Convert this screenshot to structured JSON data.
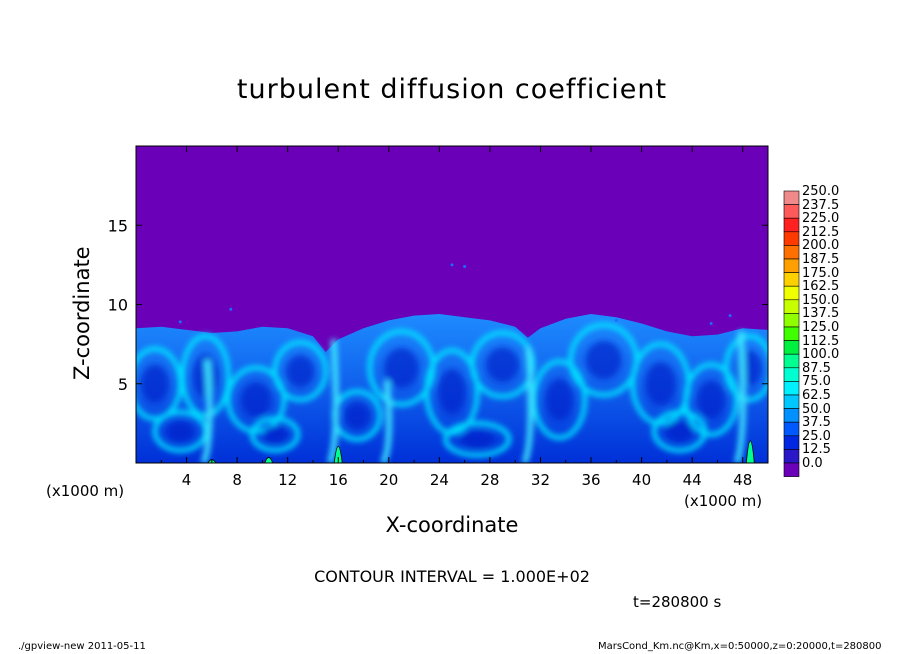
{
  "chart_data": {
    "type": "heatmap",
    "title": "turbulent diffusion coefficient",
    "xlabel": "X-coordinate",
    "ylabel": "Z-coordinate",
    "x_unit": "(x1000 m)",
    "xlim": [
      0,
      50
    ],
    "ylim": [
      0,
      20
    ],
    "x_ticks": [
      "4",
      "8",
      "12",
      "16",
      "20",
      "24",
      "28",
      "32",
      "36",
      "40",
      "44",
      "48"
    ],
    "y_ticks": [
      "5",
      "10",
      "15"
    ],
    "x_tick_values": [
      4,
      8,
      12,
      16,
      20,
      24,
      28,
      32,
      36,
      40,
      44,
      48
    ],
    "y_tick_values": [
      5,
      10,
      15
    ],
    "colorbar": {
      "levels": [
        "250.0",
        "237.5",
        "225.0",
        "212.5",
        "200.0",
        "187.5",
        "175.0",
        "162.5",
        "150.0",
        "137.5",
        "125.0",
        "112.5",
        "100.0",
        "87.5",
        "75.0",
        "62.5",
        "50.0",
        "37.5",
        "25.0",
        "12.5",
        "0.0"
      ],
      "colors": [
        "#f08a8a",
        "#ff5a5a",
        "#ff2020",
        "#ff3a00",
        "#ff7000",
        "#ffa000",
        "#ffd000",
        "#f0ff00",
        "#c8ff00",
        "#90ff00",
        "#40ff00",
        "#00f040",
        "#00ff90",
        "#00ffd0",
        "#00f0ff",
        "#00c8ff",
        "#0090ff",
        "#0058ff",
        "#0028e0",
        "#2a18c8",
        "#6a00b8"
      ]
    },
    "boundary_layer_top": {
      "x": [
        0,
        2,
        4,
        6,
        8,
        10,
        12,
        14,
        15,
        16,
        18,
        20,
        22,
        24,
        26,
        28,
        30,
        31,
        32,
        34,
        36,
        38,
        40,
        42,
        44,
        46,
        48,
        50
      ],
      "z": [
        8.5,
        8.6,
        8.4,
        8.2,
        8.3,
        8.6,
        8.5,
        8.0,
        7.0,
        7.8,
        8.5,
        9.0,
        9.3,
        9.4,
        9.2,
        9.0,
        8.6,
        7.9,
        8.5,
        9.1,
        9.4,
        9.2,
        8.8,
        8.3,
        8.0,
        8.1,
        8.5,
        8.4
      ]
    },
    "contour_interval": "CONTOUR INTERVAL = 1.000E+02",
    "time": "t=280800 s"
  },
  "footer": {
    "left": "./gpview-new   2011-05-11",
    "right": "MarsCond_Km.nc@Km,x=0:50000,z=0:20000,t=280800"
  }
}
